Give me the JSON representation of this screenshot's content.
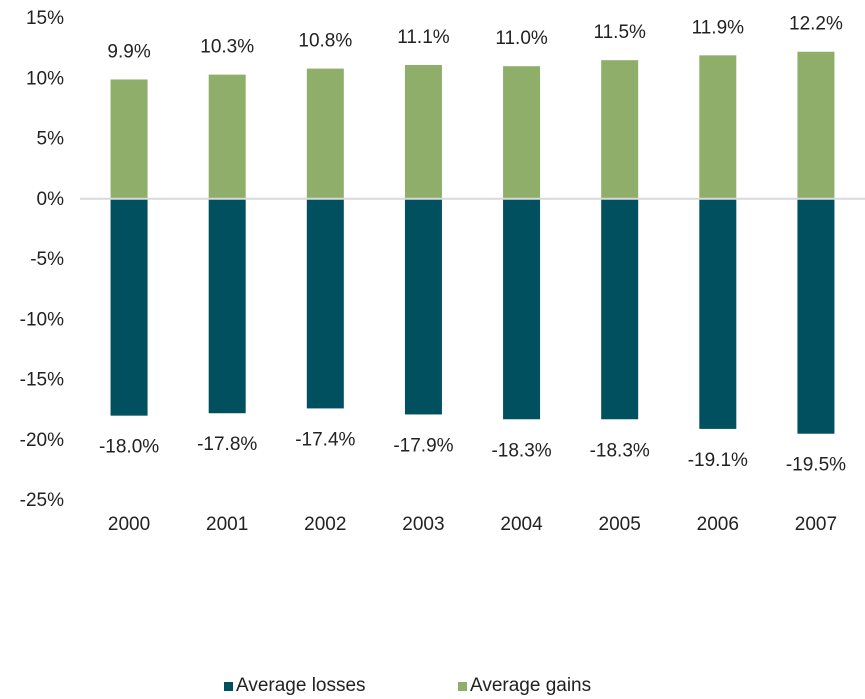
{
  "chart_data": {
    "type": "bar",
    "stacked": true,
    "categories": [
      "2000",
      "2001",
      "2002",
      "2003",
      "2004",
      "2005",
      "2006",
      "2007"
    ],
    "series": [
      {
        "name": "Average losses",
        "color": "#00505f",
        "values": [
          -18.0,
          -17.8,
          -17.4,
          -17.9,
          -18.3,
          -18.3,
          -19.1,
          -19.5
        ],
        "labels": [
          "-18.0%",
          "-17.8%",
          "-17.4%",
          "-17.9%",
          "-18.3%",
          "-18.3%",
          "-19.1%",
          "-19.5%"
        ]
      },
      {
        "name": "Average gains",
        "color": "#8fae6a",
        "values": [
          9.9,
          10.3,
          10.8,
          11.1,
          11.0,
          11.5,
          11.9,
          12.2
        ],
        "labels": [
          "9.9%",
          "10.3%",
          "10.8%",
          "11.1%",
          "11.0%",
          "11.5%",
          "11.9%",
          "12.2%"
        ]
      }
    ],
    "ylim": [
      -25,
      15
    ],
    "yticks": [
      15,
      10,
      5,
      0,
      -5,
      -10,
      -15,
      -20,
      -25
    ],
    "ytick_labels": [
      "15%",
      "10%",
      "5%",
      "0%",
      "-5%",
      "-10%",
      "-15%",
      "-20%",
      "-25%"
    ],
    "grid": false,
    "zero_line": true,
    "legend_position": "bottom"
  }
}
